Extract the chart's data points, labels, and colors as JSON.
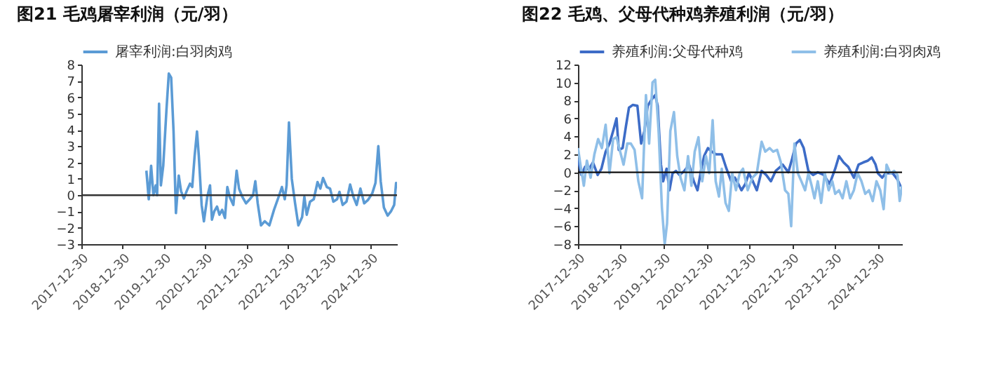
{
  "chart_data": [
    {
      "type": "line",
      "title": "图21 毛鸡屠宰利润（元/羽）",
      "legend": "top",
      "xlim": [
        "2017-12-30",
        "2025-08-17"
      ],
      "xticks": [
        "2017-12-30",
        "2018-12-30",
        "2019-12-30",
        "2020-12-30",
        "2021-12-30",
        "2022-12-30",
        "2023-12-30",
        "2024-12-30"
      ],
      "ylim": [
        -3,
        8
      ],
      "yticks": [
        -3,
        -2,
        -1,
        0,
        1,
        2,
        3,
        4,
        5,
        6,
        7,
        8
      ],
      "ref_lines": [
        {
          "axis": "y",
          "value": 0,
          "color": "#333333"
        }
      ],
      "series": [
        {
          "name": "屠宰利润:白羽肉鸡",
          "color": "#5b9bd5",
          "x": [
            "2019-07-27",
            "2019-08-17",
            "2019-09-07",
            "2019-09-27",
            "2019-10-18",
            "2019-10-30",
            "2019-11-16",
            "2019-12-02",
            "2019-12-23",
            "2020-01-21",
            "2020-02-10",
            "2020-03-02",
            "2020-03-23",
            "2020-04-13",
            "2020-05-08",
            "2020-05-28",
            "2020-06-22",
            "2020-07-17",
            "2020-08-15",
            "2020-09-04",
            "2020-09-25",
            "2020-10-16",
            "2020-11-01",
            "2020-11-26",
            "2020-12-16",
            "2021-01-15",
            "2021-02-08",
            "2021-02-25",
            "2021-03-17",
            "2021-04-11",
            "2021-05-02",
            "2021-05-26",
            "2021-06-20",
            "2021-07-11",
            "2021-07-31",
            "2021-09-02",
            "2021-10-01",
            "2021-10-22",
            "2021-11-20",
            "2021-12-23",
            "2022-01-25",
            "2022-02-23",
            "2022-03-15",
            "2022-04-05",
            "2022-05-04",
            "2022-06-06",
            "2022-07-17",
            "2022-08-27",
            "2022-10-07",
            "2022-11-05",
            "2022-11-30",
            "2022-12-16",
            "2023-01-06",
            "2023-01-31",
            "2023-03-01",
            "2023-03-30",
            "2023-05-02",
            "2023-05-22",
            "2023-06-12",
            "2023-07-11",
            "2023-08-13",
            "2023-09-15",
            "2023-10-10",
            "2023-11-03",
            "2023-12-06",
            "2024-01-04",
            "2024-02-02",
            "2024-03-06",
            "2024-03-27",
            "2024-04-24",
            "2024-05-28",
            "2024-06-29",
            "2024-07-28",
            "2024-08-26",
            "2024-09-28",
            "2024-10-31",
            "2024-12-03",
            "2025-01-10",
            "2025-02-08",
            "2025-03-05",
            "2025-03-26",
            "2025-04-23",
            "2025-05-26",
            "2025-06-24",
            "2025-07-23",
            "2025-08-09",
            "2025-08-17"
          ],
          "values": [
            1.5,
            -0.25,
            1.8,
            0,
            0.6,
            0,
            5.6,
            0.6,
            1.8,
            5.3,
            7.45,
            7.2,
            3.9,
            -1.1,
            1.2,
            0.25,
            -0.2,
            0.25,
            0.7,
            0.5,
            2.4,
            3.9,
            2.4,
            -0.6,
            -1.6,
            -0.1,
            0.6,
            -1.5,
            -1.0,
            -0.7,
            -1.2,
            -0.9,
            -1.4,
            0.5,
            -0.1,
            -0.6,
            1.5,
            0.4,
            -0.1,
            -0.5,
            -0.25,
            0,
            0.85,
            -0.5,
            -1.85,
            -1.6,
            -1.85,
            -0.9,
            -0.1,
            0.5,
            -0.25,
            0.6,
            4.45,
            1.0,
            -0.5,
            -1.85,
            -1.35,
            -0.1,
            -1.2,
            -0.4,
            -0.25,
            0.8,
            0.4,
            1.05,
            0.5,
            0.4,
            -0.4,
            -0.25,
            0.2,
            -0.6,
            -0.4,
            0.65,
            -0.1,
            -0.6,
            0.4,
            -0.5,
            -0.3,
            0.1,
            0.75,
            3.0,
            0.85,
            -0.75,
            -1.25,
            -1.0,
            -0.6,
            0.75,
            0.4
          ]
        }
      ]
    },
    {
      "type": "line",
      "title": "图22 毛鸡、父母代种鸡养殖利润（元/羽）",
      "legend": "top",
      "xlim": [
        "2017-12-30",
        "2025-07-26"
      ],
      "xticks": [
        "2017-12-30",
        "2018-12-30",
        "2019-12-30",
        "2020-12-30",
        "2021-12-30",
        "2022-12-30",
        "2023-12-30",
        "2024-12-30"
      ],
      "ylim": [
        -8,
        12
      ],
      "yticks": [
        -8,
        -6,
        -4,
        -2,
        0,
        2,
        4,
        6,
        8,
        10,
        12
      ],
      "ref_lines": [
        {
          "axis": "y",
          "value": 0,
          "color": "#111111"
        }
      ],
      "series": [
        {
          "name": "养殖利润:父母代种鸡",
          "color": "#3d6cc7",
          "x": [
            "2017-12-30",
            "2018-01-28",
            "2018-02-28",
            "2018-04-01",
            "2018-05-07",
            "2018-06-16",
            "2018-07-18",
            "2018-08-23",
            "2018-09-25",
            "2018-10-26",
            "2018-11-24",
            "2018-12-13",
            "2019-01-15",
            "2019-02-12",
            "2019-03-10",
            "2019-04-11",
            "2019-05-21",
            "2019-06-22",
            "2019-07-20",
            "2019-08-17",
            "2019-09-19",
            "2019-10-20",
            "2019-11-10",
            "2019-12-08",
            "2019-12-27",
            "2020-01-25",
            "2020-02-19",
            "2020-03-16",
            "2020-04-14",
            "2020-05-15",
            "2020-06-25",
            "2020-08-04",
            "2020-09-13",
            "2020-10-15",
            "2020-11-13",
            "2020-12-10",
            "2021-01-12",
            "2021-02-13",
            "2021-03-23",
            "2021-05-10",
            "2021-06-19",
            "2021-07-29",
            "2021-08-30",
            "2021-09-28",
            "2021-10-25",
            "2021-11-27",
            "2021-12-28",
            "2022-01-30",
            "2022-03-05",
            "2022-04-15",
            "2022-05-24",
            "2022-07-03",
            "2022-08-13",
            "2022-10-12",
            "2022-11-29",
            "2023-01-01",
            "2023-02-02",
            "2023-03-07",
            "2023-04-09",
            "2023-05-19",
            "2023-06-28",
            "2023-08-07",
            "2023-09-28",
            "2023-11-16",
            "2024-01-03",
            "2024-02-04",
            "2024-03-14",
            "2024-04-23",
            "2024-06-10",
            "2024-07-20",
            "2024-08-29",
            "2024-10-08",
            "2024-11-10",
            "2024-12-11",
            "2025-01-01",
            "2025-02-07",
            "2025-03-08",
            "2025-05-07",
            "2025-06-17",
            "2025-07-14"
          ],
          "values": [
            1.5,
            -0.3,
            0.6,
            0.3,
            1.1,
            -0.3,
            0.4,
            2.3,
            3.2,
            4.6,
            6.0,
            2.5,
            2.7,
            5.1,
            7.2,
            7.5,
            7.4,
            3.2,
            4.6,
            7.4,
            8.1,
            8.6,
            7.4,
            0.85,
            -1.0,
            0.4,
            -2.0,
            -0.1,
            0.15,
            -0.3,
            0.15,
            0.85,
            -1.0,
            -2.0,
            0.15,
            1.8,
            2.7,
            2.3,
            2.0,
            2.0,
            0.4,
            -1.0,
            -0.6,
            -1.3,
            -2.0,
            -1.3,
            -0.1,
            -1.0,
            -2.0,
            0.15,
            -0.3,
            -1.0,
            0.15,
            0.85,
            0,
            1.55,
            3.2,
            3.6,
            2.7,
            0.15,
            -0.3,
            0,
            -0.3,
            -1.3,
            0.4,
            1.8,
            1.1,
            0.6,
            -0.6,
            0.85,
            1.1,
            1.3,
            1.65,
            0.9,
            -0.1,
            -0.6,
            -0.1,
            -0.1,
            -0.8,
            -1.6
          ]
        },
        {
          "name": "养殖利润:白羽肉鸡",
          "color": "#8fbfe8",
          "x": [
            "2017-12-30",
            "2018-01-20",
            "2018-02-18",
            "2018-03-16",
            "2018-04-17",
            "2018-05-19",
            "2018-06-20",
            "2018-07-22",
            "2018-08-23",
            "2018-09-25",
            "2018-10-26",
            "2018-11-24",
            "2018-12-21",
            "2019-01-23",
            "2019-02-24",
            "2019-03-26",
            "2019-04-27",
            "2019-05-29",
            "2019-06-30",
            "2019-08-02",
            "2019-08-29",
            "2019-09-27",
            "2019-10-20",
            "2019-11-18",
            "2019-12-16",
            "2020-01-09",
            "2020-01-29",
            "2020-02-26",
            "2020-03-28",
            "2020-04-25",
            "2020-05-23",
            "2020-06-25",
            "2020-07-26",
            "2020-08-24",
            "2020-09-21",
            "2020-10-23",
            "2020-11-24",
            "2020-12-26",
            "2021-01-23",
            "2021-02-21",
            "2021-03-19",
            "2021-04-16",
            "2021-05-10",
            "2021-06-11",
            "2021-07-09",
            "2021-08-07",
            "2021-09-08",
            "2021-10-10",
            "2021-11-07",
            "2021-12-17",
            "2022-01-26",
            "2022-03-05",
            "2022-04-15",
            "2022-05-16",
            "2022-06-22",
            "2022-07-23",
            "2022-08-25",
            "2022-09-26",
            "2022-11-01",
            "2022-11-29",
            "2022-12-23",
            "2023-01-20",
            "2023-02-18",
            "2023-03-20",
            "2023-04-21",
            "2023-05-19",
            "2023-06-16",
            "2023-07-10",
            "2023-08-07",
            "2023-09-05",
            "2023-10-06",
            "2023-11-08",
            "2023-12-09",
            "2024-01-03",
            "2024-02-04",
            "2024-03-06",
            "2024-04-07",
            "2024-05-09",
            "2024-06-10",
            "2024-07-12",
            "2024-08-14",
            "2024-09-15",
            "2024-10-17",
            "2024-11-18",
            "2024-12-20",
            "2025-01-21",
            "2025-02-19",
            "2025-03-16",
            "2025-04-18",
            "2025-05-19",
            "2025-06-17",
            "2025-07-06",
            "2025-07-26"
          ],
          "values": [
            2.7,
            0.85,
            -1.5,
            1.3,
            -0.6,
            2.0,
            3.7,
            2.7,
            5.3,
            -0.1,
            3.7,
            3.9,
            2.5,
            0.85,
            3.2,
            3.2,
            2.5,
            -1.0,
            -2.9,
            8.6,
            3.2,
            10.0,
            10.3,
            4.6,
            -3.9,
            -8.0,
            -5.7,
            4.6,
            6.7,
            1.8,
            -0.6,
            -2.0,
            1.8,
            -1.5,
            2.3,
            3.9,
            -1.0,
            1.8,
            -0.1,
            5.8,
            -1.0,
            -2.7,
            0.4,
            -3.4,
            -4.3,
            -0.1,
            -2.0,
            -0.1,
            0.4,
            -2.0,
            -0.6,
            -0.1,
            3.4,
            2.3,
            2.7,
            2.3,
            2.5,
            1.1,
            -2.0,
            -2.4,
            -6.0,
            3.2,
            -0.1,
            -1.0,
            -2.0,
            -0.1,
            -1.5,
            -2.9,
            -1.0,
            -3.4,
            -0.1,
            -2.0,
            -1.0,
            -2.4,
            -2.0,
            -2.9,
            -1.0,
            -2.9,
            -2.0,
            -0.1,
            -1.0,
            -2.4,
            -2.0,
            -3.2,
            -1.0,
            -2.0,
            -4.1,
            0.85,
            -0.1,
            0.15,
            -0.3,
            -3.2,
            -1.5
          ]
        }
      ]
    }
  ]
}
